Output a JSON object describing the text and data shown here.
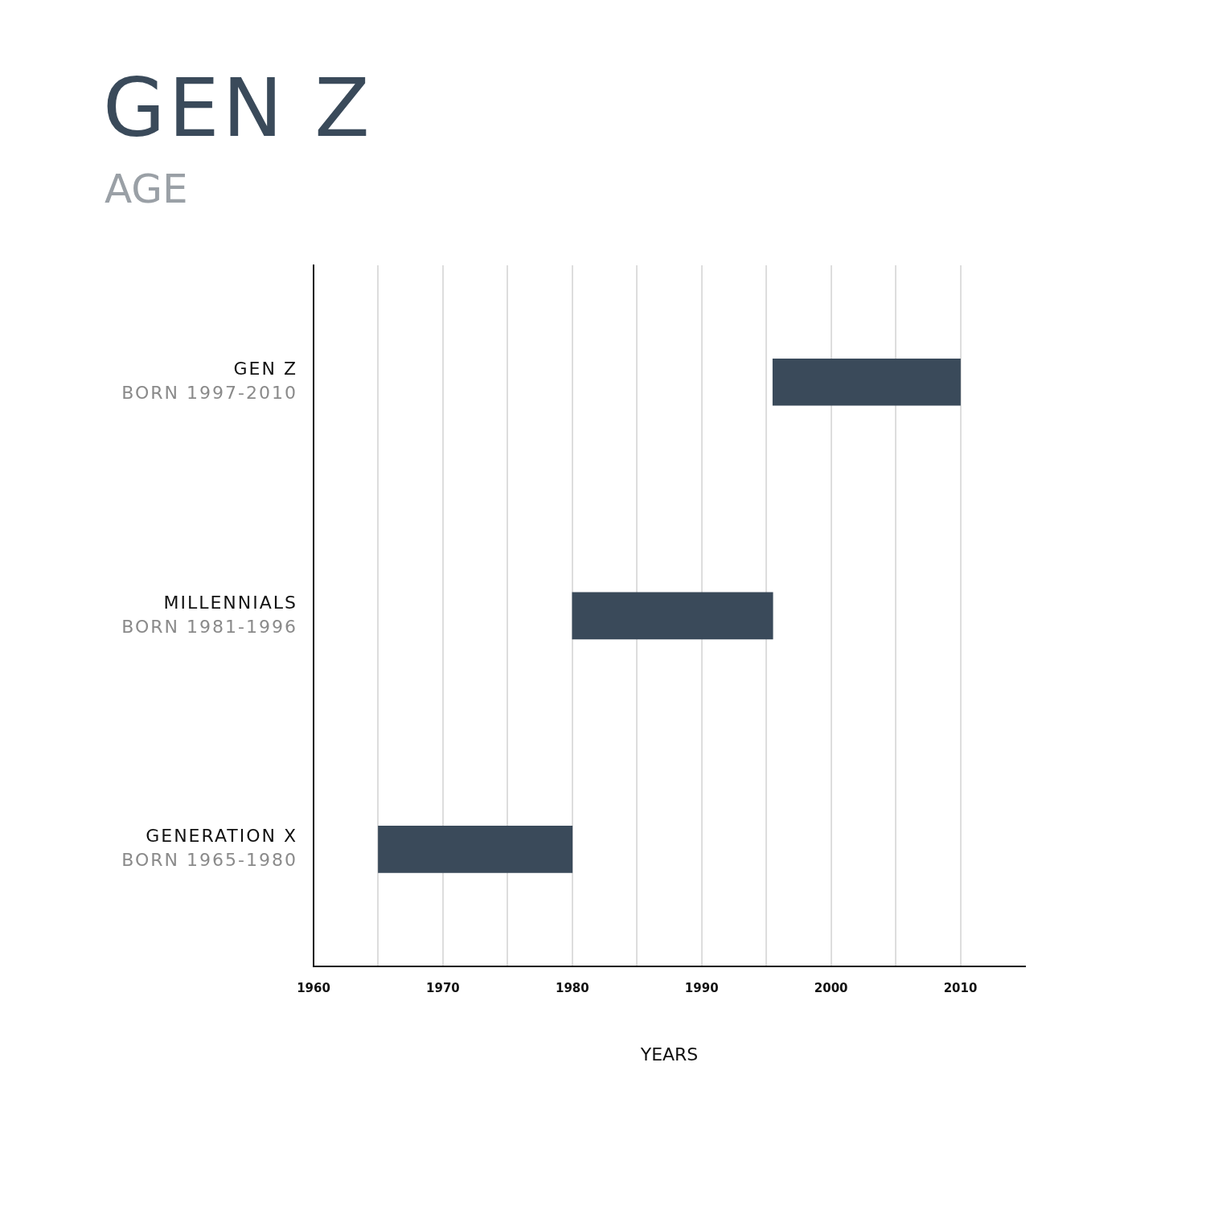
{
  "chart_data": {
    "type": "bar",
    "orientation": "horizontal",
    "title": "GEN Z",
    "subtitle": "AGE",
    "xlabel": "YEARS",
    "categories": [
      "GEN Z\nBORN 1997-2010",
      "MILLENNIALS\nBORN 1981-1996",
      "GENERATION X\nBORN 1965-1980"
    ],
    "base": [
      1995.5,
      1980,
      1965
    ],
    "values": [
      14.5,
      15.5,
      15
    ],
    "color": "#3a4a5a",
    "xlim": [
      1960,
      2015
    ],
    "xticks": [
      1960,
      {
        "value": 1965,
        "label": null
      },
      1970,
      {
        "value": 1975,
        "label": null
      },
      1980,
      {
        "value": 1985,
        "label": null
      },
      1990,
      {
        "value": 1995,
        "label": null
      },
      2000,
      {
        "value": 2005,
        "label": null
      },
      2010
    ],
    "grid": "x",
    "legend": false
  }
}
